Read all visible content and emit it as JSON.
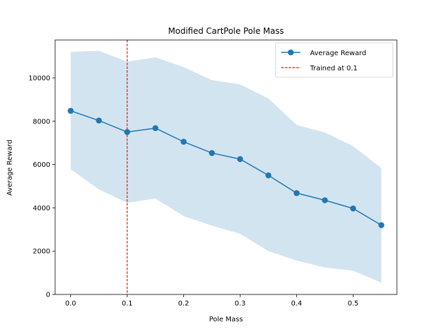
{
  "chart_data": {
    "type": "line",
    "title": "Modified CartPole Pole Mass",
    "xlabel": "Pole Mass",
    "ylabel": "Average Reward",
    "xlim": [
      -0.0275,
      0.5775
    ],
    "ylim": [
      0,
      11750
    ],
    "xticks": [
      0.0,
      0.1,
      0.2,
      0.3,
      0.4,
      0.5
    ],
    "xtick_labels": [
      "0.0",
      "0.1",
      "0.2",
      "0.3",
      "0.4",
      "0.5"
    ],
    "yticks": [
      0,
      2000,
      4000,
      6000,
      8000,
      10000
    ],
    "ytick_labels": [
      "0",
      "2000",
      "4000",
      "6000",
      "8000",
      "10000"
    ],
    "grid": false,
    "legend_position": "upper right",
    "series": [
      {
        "name": "Average Reward",
        "color": "#1f77b4",
        "marker": "circle",
        "x": [
          0.0,
          0.05,
          0.1,
          0.15,
          0.2,
          0.25,
          0.3,
          0.35,
          0.4,
          0.45,
          0.5,
          0.55
        ],
        "y": [
          8480,
          8030,
          7500,
          7680,
          7050,
          6530,
          6250,
          5500,
          4680,
          4350,
          3970,
          3200
        ],
        "band_upper": [
          11200,
          11250,
          10750,
          10950,
          10500,
          9900,
          9700,
          9050,
          7830,
          7480,
          6850,
          5830
        ],
        "band_lower": [
          5780,
          4850,
          4230,
          4430,
          3620,
          3180,
          2800,
          2000,
          1570,
          1240,
          1100,
          540
        ],
        "band_color": "#1f77b4",
        "band_opacity": 0.2
      }
    ],
    "vlines": [
      {
        "name": "Trained at 0.1",
        "x": 0.1,
        "color": "#ff0000",
        "style": "dashed"
      }
    ]
  }
}
